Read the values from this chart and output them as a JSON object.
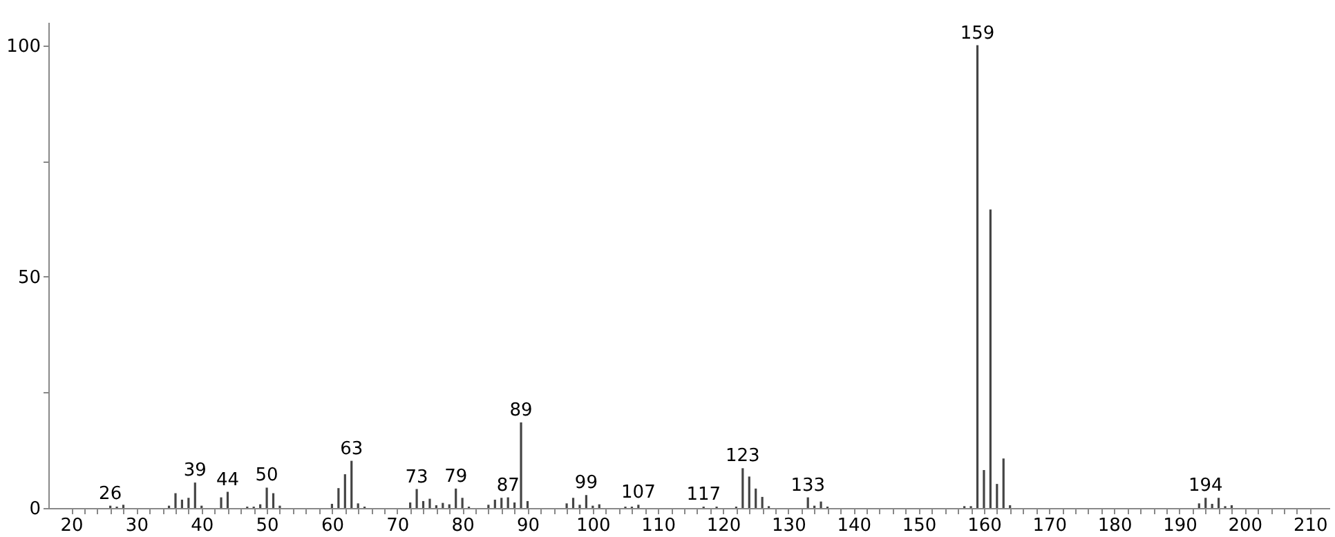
{
  "chart_data": {
    "type": "bar",
    "color": "#444444",
    "grid": false,
    "x": [
      26,
      27,
      28,
      35,
      36,
      37,
      38,
      39,
      40,
      43,
      44,
      47,
      48,
      49,
      50,
      51,
      52,
      60,
      61,
      62,
      63,
      64,
      65,
      72,
      73,
      74,
      75,
      76,
      77,
      78,
      79,
      80,
      81,
      84,
      85,
      86,
      87,
      88,
      89,
      90,
      96,
      97,
      98,
      99,
      100,
      101,
      105,
      106,
      107,
      117,
      119,
      122,
      123,
      124,
      125,
      126,
      127,
      133,
      134,
      135,
      136,
      157,
      158,
      159,
      160,
      161,
      162,
      163,
      164,
      193,
      194,
      195,
      196,
      197,
      198
    ],
    "values": [
      0.5,
      0.3,
      0.7,
      0.5,
      3.2,
      1.8,
      2.2,
      5.5,
      0.5,
      2.3,
      3.5,
      0.3,
      0.3,
      0.8,
      4.4,
      3.2,
      0.5,
      0.9,
      4.3,
      7.3,
      10.2,
      1.0,
      0.3,
      1.2,
      4.1,
      1.5,
      2.0,
      0.6,
      1.1,
      0.8,
      4.2,
      2.2,
      0.3,
      0.7,
      1.8,
      2.2,
      2.3,
      1.2,
      18.5,
      1.5,
      1.0,
      2.2,
      0.7,
      2.8,
      0.5,
      0.8,
      0.3,
      0.3,
      0.7,
      0.3,
      0.3,
      0.3,
      8.6,
      6.8,
      4.2,
      2.4,
      0.4,
      2.3,
      0.5,
      1.4,
      0.3,
      0.4,
      0.4,
      100,
      8.2,
      64.5,
      5.2,
      10.7,
      0.6,
      1.0,
      2.2,
      0.9,
      2.2,
      0.4,
      0.6
    ],
    "annotations": [
      {
        "text": "26",
        "x": 26,
        "y": 0.5
      },
      {
        "text": "39",
        "x": 39,
        "y": 5.5
      },
      {
        "text": "44",
        "x": 44,
        "y": 3.5
      },
      {
        "text": "50",
        "x": 50,
        "y": 4.4
      },
      {
        "text": "63",
        "x": 63,
        "y": 10.2
      },
      {
        "text": "73",
        "x": 73,
        "y": 4.1
      },
      {
        "text": "79",
        "x": 79,
        "y": 4.2
      },
      {
        "text": "87",
        "x": 87,
        "y": 2.3
      },
      {
        "text": "89",
        "x": 89,
        "y": 18.5
      },
      {
        "text": "99",
        "x": 99,
        "y": 2.8
      },
      {
        "text": "107",
        "x": 107,
        "y": 0.7
      },
      {
        "text": "117",
        "x": 117,
        "y": 0.3
      },
      {
        "text": "123",
        "x": 123,
        "y": 8.6
      },
      {
        "text": "133",
        "x": 133,
        "y": 2.3
      },
      {
        "text": "159",
        "x": 159,
        "y": 100
      },
      {
        "text": "194",
        "x": 194,
        "y": 2.2
      }
    ],
    "xlim": [
      16.5,
      213
    ],
    "ylim": [
      0,
      105
    ],
    "xticks": [
      20,
      {
        "value": 22,
        "label": null
      },
      {
        "value": 24,
        "label": null
      },
      {
        "value": 26,
        "label": null
      },
      {
        "value": 28,
        "label": null
      },
      30,
      {
        "value": 32,
        "label": null
      },
      {
        "value": 34,
        "label": null
      },
      {
        "value": 36,
        "label": null
      },
      {
        "value": 38,
        "label": null
      },
      40,
      {
        "value": 42,
        "label": null
      },
      {
        "value": 44,
        "label": null
      },
      {
        "value": 46,
        "label": null
      },
      {
        "value": 48,
        "label": null
      },
      50,
      {
        "value": 52,
        "label": null
      },
      {
        "value": 54,
        "label": null
      },
      {
        "value": 56,
        "label": null
      },
      {
        "value": 58,
        "label": null
      },
      60,
      {
        "value": 62,
        "label": null
      },
      {
        "value": 64,
        "label": null
      },
      {
        "value": 66,
        "label": null
      },
      {
        "value": 68,
        "label": null
      },
      70,
      {
        "value": 72,
        "label": null
      },
      {
        "value": 74,
        "label": null
      },
      {
        "value": 76,
        "label": null
      },
      {
        "value": 78,
        "label": null
      },
      80,
      {
        "value": 82,
        "label": null
      },
      {
        "value": 84,
        "label": null
      },
      {
        "value": 86,
        "label": null
      },
      {
        "value": 88,
        "label": null
      },
      90,
      {
        "value": 92,
        "label": null
      },
      {
        "value": 94,
        "label": null
      },
      {
        "value": 96,
        "label": null
      },
      {
        "value": 98,
        "label": null
      },
      100,
      {
        "value": 102,
        "label": null
      },
      {
        "value": 104,
        "label": null
      },
      {
        "value": 106,
        "label": null
      },
      {
        "value": 108,
        "label": null
      },
      110,
      {
        "value": 112,
        "label": null
      },
      {
        "value": 114,
        "label": null
      },
      {
        "value": 116,
        "label": null
      },
      {
        "value": 118,
        "label": null
      },
      120,
      {
        "value": 122,
        "label": null
      },
      {
        "value": 124,
        "label": null
      },
      {
        "value": 126,
        "label": null
      },
      {
        "value": 128,
        "label": null
      },
      130,
      {
        "value": 132,
        "label": null
      },
      {
        "value": 134,
        "label": null
      },
      {
        "value": 136,
        "label": null
      },
      {
        "value": 138,
        "label": null
      },
      140,
      {
        "value": 142,
        "label": null
      },
      {
        "value": 144,
        "label": null
      },
      {
        "value": 146,
        "label": null
      },
      {
        "value": 148,
        "label": null
      },
      150,
      {
        "value": 152,
        "label": null
      },
      {
        "value": 154,
        "label": null
      },
      {
        "value": 156,
        "label": null
      },
      {
        "value": 158,
        "label": null
      },
      160,
      {
        "value": 162,
        "label": null
      },
      {
        "value": 164,
        "label": null
      },
      {
        "value": 166,
        "label": null
      },
      {
        "value": 168,
        "label": null
      },
      170,
      {
        "value": 172,
        "label": null
      },
      {
        "value": 174,
        "label": null
      },
      {
        "value": 176,
        "label": null
      },
      {
        "value": 178,
        "label": null
      },
      180,
      {
        "value": 182,
        "label": null
      },
      {
        "value": 184,
        "label": null
      },
      {
        "value": 186,
        "label": null
      },
      {
        "value": 188,
        "label": null
      },
      190,
      {
        "value": 192,
        "label": null
      },
      {
        "value": 194,
        "label": null
      },
      {
        "value": 196,
        "label": null
      },
      {
        "value": 198,
        "label": null
      },
      200,
      {
        "value": 202,
        "label": null
      },
      {
        "value": 204,
        "label": null
      },
      {
        "value": 206,
        "label": null
      },
      {
        "value": 208,
        "label": null
      },
      210
    ],
    "yticks": [
      0,
      {
        "value": 25,
        "label": null
      },
      50,
      {
        "value": 75,
        "label": null
      },
      100
    ]
  }
}
